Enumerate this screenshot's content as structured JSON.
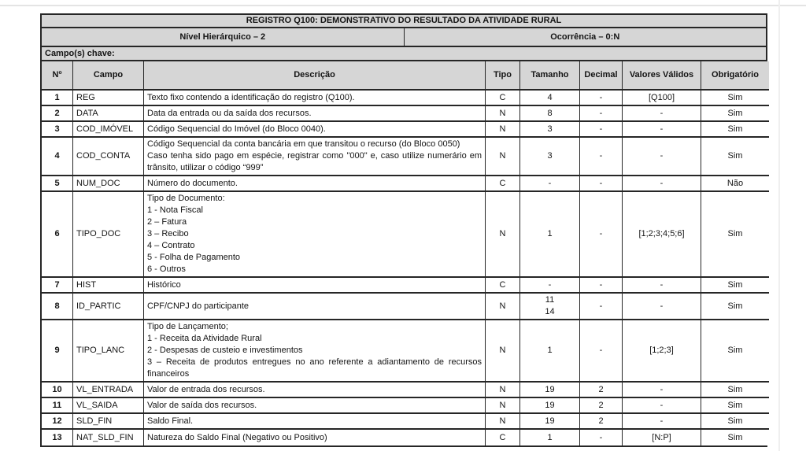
{
  "title": "REGISTRO Q100: DEMONSTRATIVO DO RESULTADO DA ATIVIDADE RURAL",
  "meta": {
    "nivel": "Nível Hierárquico – 2",
    "ocorrencia": "Ocorrência – 0:N",
    "campos_chave": "Campo(s) chave:"
  },
  "colors": {
    "header_bg": "#d6d6d6",
    "border": "#262626",
    "text": "#141414"
  },
  "table": {
    "headers": [
      "Nº",
      "Campo",
      "Descrição",
      "Tipo",
      "Tamanho",
      "Decimal",
      "Valores Válidos",
      "Obrigatório"
    ],
    "rows": [
      {
        "no": "1",
        "campo": "REG",
        "desc": "Texto fixo contendo a identificação do registro (Q100).",
        "tipo": "C",
        "tam": "4",
        "dec": "-",
        "val": "[Q100]",
        "obr": "Sim"
      },
      {
        "no": "2",
        "campo": "DATA",
        "desc": "Data da entrada ou da saída dos recursos.",
        "tipo": "N",
        "tam": "8",
        "dec": "-",
        "val": "-",
        "obr": "Sim"
      },
      {
        "no": "3",
        "campo": "COD_IMÓVEL",
        "desc": "Código Sequencial do Imóvel (do Bloco 0040).",
        "tipo": "N",
        "tam": "3",
        "dec": "-",
        "val": "-",
        "obr": "Sim"
      },
      {
        "no": "4",
        "campo": "COD_CONTA",
        "desc": "Código Sequencial da conta bancária em que transitou o recurso (do Bloco 0050)\nCaso tenha sido pago em espécie, registrar como \"000\" e, caso utilize numerário em trânsito, utilizar o código “999”",
        "tipo": "N",
        "tam": "3",
        "dec": "-",
        "val": "-",
        "obr": "Sim"
      },
      {
        "no": "5",
        "campo": "NUM_DOC",
        "desc": "Número do documento.",
        "tipo": "C",
        "tam": "-",
        "dec": "-",
        "val": "-",
        "obr": "Não"
      },
      {
        "no": "6",
        "campo": "TIPO_DOC",
        "desc": "Tipo de Documento:\n1 - Nota Fiscal\n2 – Fatura\n3 – Recibo\n4 – Contrato\n5 - Folha de Pagamento\n6 - Outros",
        "tipo": "N",
        "tam": "1",
        "dec": "-",
        "val": "[1;2;3;4;5;6]",
        "obr": "Sim"
      },
      {
        "no": "7",
        "campo": "HIST",
        "desc": "Histórico",
        "tipo": "C",
        "tam": "-",
        "dec": "-",
        "val": "-",
        "obr": "Sim"
      },
      {
        "no": "8",
        "campo": "ID_PARTIC",
        "desc": "CPF/CNPJ do participante",
        "tipo": "N",
        "tam": "11\n14",
        "dec": "-",
        "val": "-",
        "obr": "Sim"
      },
      {
        "no": "9",
        "campo": "TIPO_LANC",
        "desc": "Tipo de Lançamento;\n1 - Receita da Atividade Rural\n2 - Despesas de custeio e investimentos\n3 – Receita de produtos entregues no ano referente a adiantamento de recursos financeiros",
        "tipo": "N",
        "tam": "1",
        "dec": "-",
        "val": "[1;2;3]",
        "obr": "Sim"
      },
      {
        "no": "10",
        "campo": "VL_ENTRADA",
        "desc": "Valor de entrada dos recursos.",
        "tipo": "N",
        "tam": "19",
        "dec": "2",
        "val": "-",
        "obr": "Sim"
      },
      {
        "no": "11",
        "campo": "VL_SAIDA",
        "desc": "Valor de saída dos recursos.",
        "tipo": "N",
        "tam": "19",
        "dec": "2",
        "val": "-",
        "obr": "Sim"
      },
      {
        "no": "12",
        "campo": "SLD_FIN",
        "desc": "Saldo Final.",
        "tipo": "N",
        "tam": "19",
        "dec": "2",
        "val": "-",
        "obr": "Sim"
      },
      {
        "no": "13",
        "campo": "NAT_SLD_FIN",
        "desc": "Natureza do Saldo Final (Negativo ou Positivo)",
        "tipo": "C",
        "tam": "1",
        "dec": "-",
        "val": "[N:P]",
        "obr": "Sim"
      }
    ]
  }
}
